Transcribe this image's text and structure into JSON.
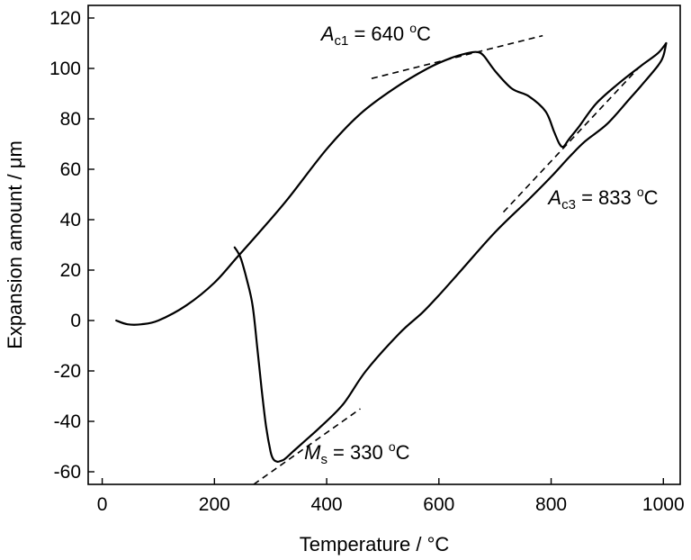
{
  "chart_data": {
    "type": "line",
    "xlabel": "Temperature / °C",
    "ylabel": "Expansion amount / μm",
    "xlim": [
      -25,
      1030
    ],
    "ylim": [
      -65,
      125
    ],
    "xticks": [
      0,
      200,
      400,
      600,
      800,
      1000
    ],
    "yticks": [
      -60,
      -40,
      -20,
      0,
      20,
      40,
      60,
      80,
      100,
      120
    ],
    "grid": false,
    "series": [
      {
        "x": [
          25,
          45,
          70,
          100,
          150,
          200,
          240,
          280,
          330,
          400,
          460,
          520,
          580,
          620,
          650,
          668,
          680,
          700,
          730,
          760,
          790,
          805,
          815,
          822,
          832,
          850,
          880,
          920,
          960,
          990,
          1005
        ],
        "y": [
          0,
          -1.5,
          -1.5,
          0,
          6,
          15,
          25,
          35,
          48,
          68,
          82,
          92,
          100,
          104,
          106,
          106.5,
          105,
          99,
          92,
          89,
          83,
          75,
          70,
          69,
          72,
          77,
          86,
          94,
          101,
          106,
          110
        ]
      },
      {
        "x": [
          1005,
          1000,
          990,
          960,
          940,
          900,
          860,
          833,
          800,
          760,
          700,
          640,
          600,
          570,
          530,
          470,
          430,
          390,
          360,
          340,
          325,
          318,
          312,
          305,
          300,
          292,
          284,
          276,
          268,
          258,
          248,
          242,
          236
        ],
        "y": [
          110,
          105,
          101,
          93,
          88,
          78,
          71,
          65,
          57,
          48,
          35,
          20,
          10,
          3,
          -5,
          -20,
          -33,
          -42,
          -48,
          -52,
          -55,
          -55.7,
          -56,
          -55,
          -52,
          -42,
          -27,
          -10,
          6,
          16,
          24,
          27,
          29
        ]
      }
    ],
    "tangents": [
      {
        "x": [
          480,
          785
        ],
        "y": [
          96,
          113
        ]
      },
      {
        "x": [
          715,
          955
        ],
        "y": [
          43,
          100
        ]
      },
      {
        "x": [
          270,
          460
        ],
        "y": [
          -65,
          -35
        ]
      }
    ],
    "annotations": [
      {
        "symbol": "A",
        "sub": "c1",
        "text": " = 640 ",
        "sup": "o",
        "unit": "C",
        "x": 390,
        "y": 111
      },
      {
        "symbol": "A",
        "sub": "c3",
        "text": " = 833 ",
        "sup": "o",
        "unit": "C",
        "x": 795,
        "y": 46
      },
      {
        "symbol": "M",
        "sub": "s",
        "text": " = 330 ",
        "sup": "o",
        "unit": "C",
        "x": 360,
        "y": -55
      }
    ]
  }
}
